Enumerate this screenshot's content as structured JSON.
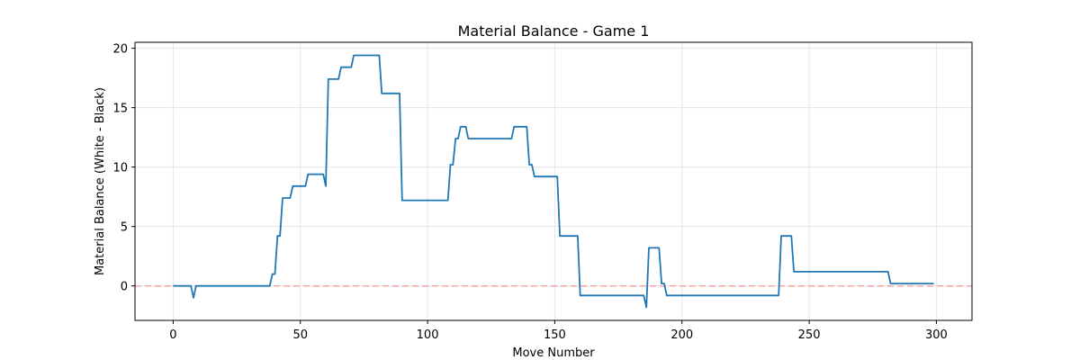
{
  "chart_data": {
    "type": "line",
    "title": "Material Balance - Game 1",
    "xlabel": "Move Number",
    "ylabel": "Material Balance (White - Black)",
    "xlim": [
      -15,
      314
    ],
    "ylim": [
      -2.9,
      20.5
    ],
    "xticks": [
      0,
      50,
      100,
      150,
      200,
      250,
      300
    ],
    "yticks": [
      0,
      5,
      10,
      15,
      20
    ],
    "grid": true,
    "colors": {
      "line": "#1f77b4",
      "reference": "#f4a6a6",
      "grid": "#e6e6e6"
    },
    "reference_line": {
      "y": 0,
      "style": "dashed"
    },
    "series": [
      {
        "x": [
          0,
          7,
          8,
          9,
          38,
          39,
          40,
          41,
          42,
          43,
          46,
          47,
          52,
          53,
          59,
          60,
          61,
          65,
          66,
          70,
          71,
          81,
          82,
          89,
          90,
          108,
          109,
          110,
          111,
          112,
          113,
          115,
          116,
          133,
          134,
          139,
          140,
          141,
          142,
          151,
          152,
          159,
          160,
          185,
          186,
          187,
          191,
          192,
          193,
          194,
          238,
          239,
          243,
          244,
          281,
          282,
          299
        ],
        "y": [
          0,
          0,
          -1,
          0,
          0,
          1,
          1,
          4.2,
          4.2,
          7.4,
          7.4,
          8.4,
          8.4,
          9.4,
          9.4,
          8.4,
          17.4,
          17.4,
          18.4,
          18.4,
          19.4,
          19.4,
          16.2,
          16.2,
          7.2,
          7.2,
          10.2,
          10.2,
          12.4,
          12.4,
          13.4,
          13.4,
          12.4,
          12.4,
          13.4,
          13.4,
          10.2,
          10.2,
          9.2,
          9.2,
          4.2,
          4.2,
          -0.8,
          -0.8,
          -1.8,
          3.2,
          3.2,
          0.2,
          0.2,
          -0.8,
          -0.8,
          4.2,
          4.2,
          1.2,
          1.2,
          0.2,
          0.2
        ]
      }
    ]
  }
}
